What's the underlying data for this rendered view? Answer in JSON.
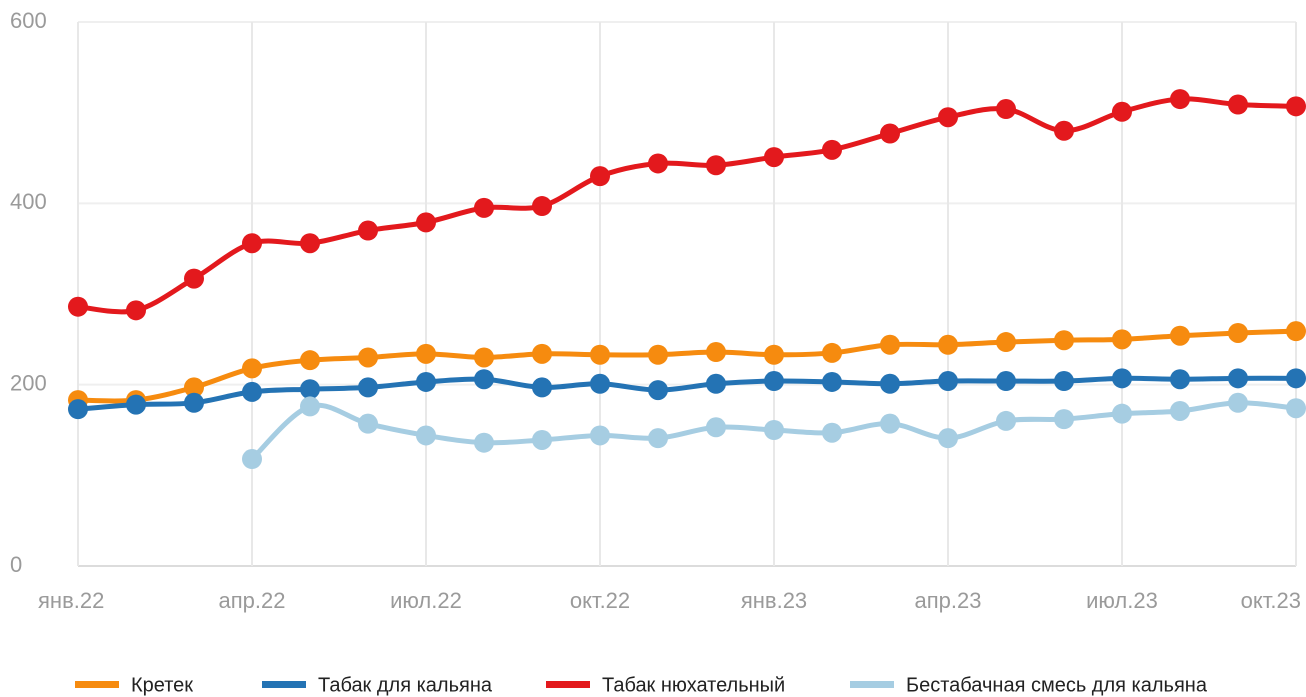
{
  "chart_data": {
    "type": "line",
    "categories": [
      "янв.22",
      null,
      null,
      "апр.22",
      null,
      null,
      "июл.22",
      null,
      null,
      "окт.22",
      null,
      null,
      "янв.23",
      null,
      null,
      "апр.23",
      null,
      null,
      "июл.23",
      null,
      null,
      "окт.23"
    ],
    "series": [
      {
        "name": "Кретек",
        "color": "#f68b0f",
        "values": [
          183,
          183,
          197,
          218,
          227,
          230,
          234,
          230,
          234,
          233,
          233,
          236,
          233,
          235,
          244,
          244,
          247,
          249,
          250,
          254,
          257,
          259
        ]
      },
      {
        "name": "Табак для кальяна",
        "color": "#2473b4",
        "values": [
          173,
          178,
          180,
          192,
          195,
          197,
          203,
          206,
          197,
          201,
          194,
          201,
          204,
          203,
          201,
          204,
          204,
          204,
          207,
          206,
          207,
          207
        ]
      },
      {
        "name": "Табак нюхательный",
        "color": "#e3191d",
        "values": [
          286,
          282,
          317,
          356,
          356,
          370,
          379,
          395,
          397,
          430,
          444,
          442,
          451,
          459,
          477,
          495,
          504,
          480,
          501,
          515,
          509,
          507
        ]
      },
      {
        "name": "Бестабачная смесь для кальяна",
        "color": "#a6cde2",
        "values": [
          null,
          null,
          null,
          118,
          176,
          157,
          144,
          136,
          139,
          144,
          141,
          153,
          150,
          147,
          157,
          141,
          160,
          162,
          168,
          171,
          180,
          174
        ]
      }
    ],
    "ylim": [
      0,
      600
    ],
    "yticks": [
      0,
      200,
      400,
      600
    ],
    "grid": true
  }
}
